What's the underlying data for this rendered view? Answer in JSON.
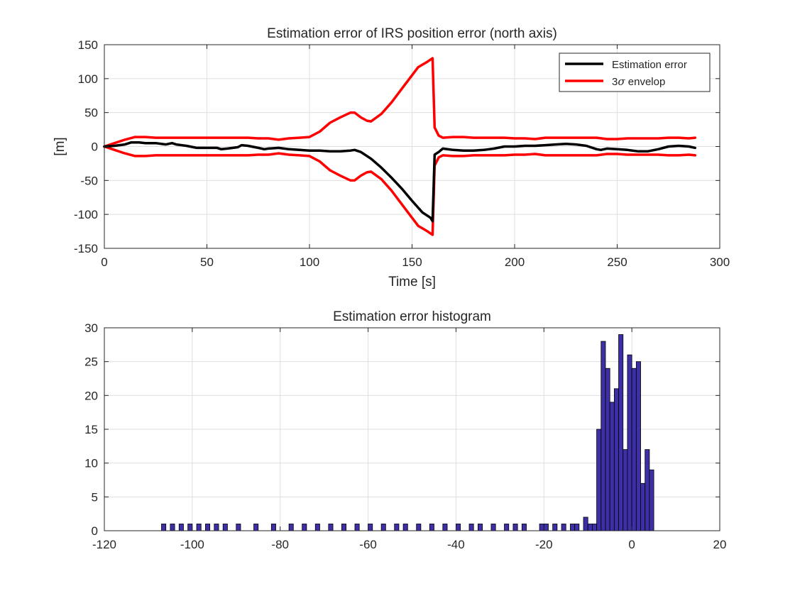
{
  "chart_data": [
    {
      "type": "line",
      "title": "Estimation error of IRS position error (north axis)",
      "xlabel": "Time [s]",
      "ylabel": "[m]",
      "xlim": [
        0,
        300
      ],
      "ylim": [
        -150,
        150
      ],
      "xticks": [
        "0",
        "50",
        "100",
        "150",
        "200",
        "250",
        "300"
      ],
      "yticks": [
        "150",
        "100",
        "50",
        "0",
        "-50",
        "-100",
        "-150"
      ],
      "grid": true,
      "legend_position": "top-right",
      "legend": [
        {
          "label": "Estimation error",
          "color": "#000000"
        },
        {
          "label_prefix": "3",
          "label_symbol": "σ",
          "label_suffix": " envelop",
          "color": "#ff0000"
        }
      ],
      "series": [
        {
          "name": "Estimation error",
          "color": "#000000",
          "x": [
            0,
            5,
            10,
            13,
            17,
            20,
            25,
            30,
            33,
            35,
            40,
            45,
            50,
            55,
            57,
            60,
            65,
            67,
            70,
            75,
            78,
            80,
            85,
            90,
            95,
            100,
            105,
            110,
            115,
            120,
            122,
            125,
            130,
            135,
            140,
            145,
            150,
            155,
            159,
            160,
            161,
            163,
            165,
            170,
            175,
            180,
            185,
            190,
            195,
            200,
            205,
            210,
            215,
            220,
            225,
            230,
            235,
            240,
            242,
            245,
            250,
            255,
            260,
            265,
            270,
            275,
            280,
            285,
            288
          ],
          "y": [
            0,
            1,
            3,
            6,
            6,
            5,
            5,
            3,
            5,
            3,
            1,
            -2,
            -2,
            -2,
            -4,
            -3,
            -1,
            2,
            1,
            -2,
            -4,
            -3,
            -2,
            -4,
            -5,
            -6,
            -6,
            -7,
            -7,
            -6,
            -5,
            -8,
            -18,
            -31,
            -46,
            -62,
            -80,
            -97,
            -105,
            -110,
            -12,
            -8,
            -3,
            -5,
            -6,
            -6,
            -5,
            -3,
            0,
            0,
            1,
            1,
            2,
            3,
            4,
            3,
            1,
            -4,
            -5,
            -3,
            -4,
            -5,
            -7,
            -7,
            -4,
            0,
            1,
            0,
            -2
          ]
        },
        {
          "name": "3σ envelop (+)",
          "color": "#ff0000",
          "x": [
            0,
            5,
            10,
            15,
            20,
            25,
            30,
            35,
            40,
            45,
            50,
            55,
            60,
            65,
            70,
            75,
            80,
            85,
            90,
            95,
            100,
            105,
            110,
            115,
            120,
            122,
            125,
            128,
            130,
            135,
            140,
            145,
            150,
            153,
            157,
            160,
            161,
            163,
            165,
            170,
            175,
            180,
            185,
            190,
            195,
            200,
            205,
            210,
            215,
            220,
            225,
            230,
            235,
            240,
            245,
            250,
            255,
            260,
            265,
            270,
            275,
            280,
            285,
            288
          ],
          "y": [
            0,
            5,
            10,
            14,
            14,
            13,
            13,
            13,
            13,
            13,
            13,
            13,
            13,
            13,
            13,
            12,
            12,
            10,
            12,
            13,
            14,
            22,
            35,
            43,
            50,
            50,
            43,
            38,
            37,
            48,
            65,
            85,
            105,
            117,
            124,
            130,
            28,
            16,
            13,
            14,
            14,
            13,
            13,
            13,
            13,
            12,
            12,
            11,
            13,
            13,
            13,
            13,
            13,
            13,
            11,
            11,
            12,
            12,
            12,
            12,
            13,
            13,
            12,
            13
          ]
        },
        {
          "name": "3σ envelop (−)",
          "color": "#ff0000",
          "x": [
            0,
            5,
            10,
            15,
            20,
            25,
            30,
            35,
            40,
            45,
            50,
            55,
            60,
            65,
            70,
            75,
            80,
            85,
            90,
            95,
            100,
            105,
            110,
            115,
            120,
            122,
            125,
            128,
            130,
            135,
            140,
            145,
            150,
            153,
            157,
            160,
            161,
            163,
            165,
            170,
            175,
            180,
            185,
            190,
            195,
            200,
            205,
            210,
            215,
            220,
            225,
            230,
            235,
            240,
            245,
            250,
            255,
            260,
            265,
            270,
            275,
            280,
            285,
            288
          ],
          "y": [
            0,
            -5,
            -10,
            -14,
            -14,
            -13,
            -13,
            -13,
            -13,
            -13,
            -13,
            -13,
            -13,
            -13,
            -13,
            -12,
            -12,
            -10,
            -12,
            -13,
            -14,
            -22,
            -35,
            -43,
            -50,
            -50,
            -43,
            -38,
            -37,
            -48,
            -65,
            -85,
            -105,
            -117,
            -124,
            -130,
            -28,
            -16,
            -13,
            -14,
            -14,
            -13,
            -13,
            -13,
            -13,
            -12,
            -12,
            -11,
            -13,
            -13,
            -13,
            -13,
            -13,
            -13,
            -11,
            -11,
            -12,
            -12,
            -12,
            -12,
            -13,
            -13,
            -12,
            -13
          ]
        }
      ]
    },
    {
      "type": "bar",
      "title": "Estimation error histogram",
      "xlim": [
        -120,
        20
      ],
      "ylim": [
        0,
        30
      ],
      "xticks": [
        "-120",
        "-100",
        "-80",
        "-60",
        "-40",
        "-20",
        "0",
        "20"
      ],
      "yticks": [
        "30",
        "25",
        "20",
        "15",
        "10",
        "5",
        "0"
      ],
      "grid": true,
      "bar_color": "#3d2fa5",
      "bar_edge_color": "#000000",
      "bin_width": 1,
      "bins": [
        {
          "center": -106.5,
          "count": 1
        },
        {
          "center": -104.5,
          "count": 1
        },
        {
          "center": -102.5,
          "count": 1
        },
        {
          "center": -100.5,
          "count": 1
        },
        {
          "center": -98.5,
          "count": 1
        },
        {
          "center": -96.5,
          "count": 1
        },
        {
          "center": -94.5,
          "count": 1
        },
        {
          "center": -92.5,
          "count": 1
        },
        {
          "center": -89.5,
          "count": 1
        },
        {
          "center": -85.5,
          "count": 1
        },
        {
          "center": -81.5,
          "count": 1
        },
        {
          "center": -77.5,
          "count": 1
        },
        {
          "center": -74.5,
          "count": 1
        },
        {
          "center": -71.5,
          "count": 1
        },
        {
          "center": -68.5,
          "count": 1
        },
        {
          "center": -65.5,
          "count": 1
        },
        {
          "center": -62.5,
          "count": 1
        },
        {
          "center": -59.5,
          "count": 1
        },
        {
          "center": -56.5,
          "count": 1
        },
        {
          "center": -53.5,
          "count": 1
        },
        {
          "center": -51.5,
          "count": 1
        },
        {
          "center": -48.5,
          "count": 1
        },
        {
          "center": -45.5,
          "count": 1
        },
        {
          "center": -42.5,
          "count": 1
        },
        {
          "center": -39.5,
          "count": 1
        },
        {
          "center": -36.5,
          "count": 1
        },
        {
          "center": -34.5,
          "count": 1
        },
        {
          "center": -31.5,
          "count": 1
        },
        {
          "center": -28.5,
          "count": 1
        },
        {
          "center": -26.5,
          "count": 1
        },
        {
          "center": -24.5,
          "count": 1
        },
        {
          "center": -20.5,
          "count": 1
        },
        {
          "center": -19.5,
          "count": 1
        },
        {
          "center": -17.5,
          "count": 1
        },
        {
          "center": -15.5,
          "count": 1
        },
        {
          "center": -13.5,
          "count": 1
        },
        {
          "center": -12.5,
          "count": 1
        },
        {
          "center": -10.5,
          "count": 2
        },
        {
          "center": -9.5,
          "count": 1
        },
        {
          "center": -8.5,
          "count": 1
        },
        {
          "center": -7.5,
          "count": 15
        },
        {
          "center": -6.5,
          "count": 28
        },
        {
          "center": -5.5,
          "count": 24
        },
        {
          "center": -4.5,
          "count": 19
        },
        {
          "center": -3.5,
          "count": 21
        },
        {
          "center": -2.5,
          "count": 29
        },
        {
          "center": -1.5,
          "count": 12
        },
        {
          "center": -0.5,
          "count": 26
        },
        {
          "center": 0.5,
          "count": 24
        },
        {
          "center": 1.5,
          "count": 25
        },
        {
          "center": 2.5,
          "count": 7
        },
        {
          "center": 3.5,
          "count": 12
        },
        {
          "center": 4.5,
          "count": 9
        }
      ]
    }
  ]
}
